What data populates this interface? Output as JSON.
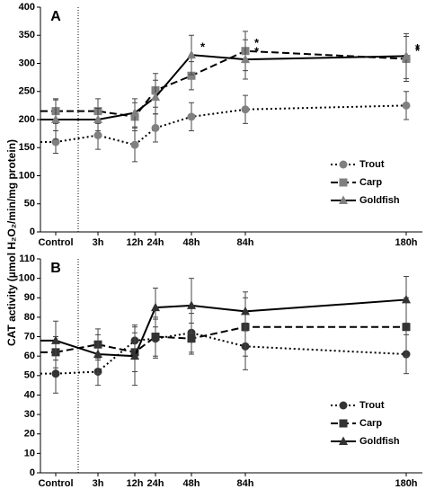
{
  "y_label": "CAT activity (µmol H₂O₂/min/mg protein)",
  "chart_data": [
    {
      "type": "line",
      "title": "A",
      "categories": [
        "Control",
        "3h",
        "12h",
        "24h",
        "48h",
        "84h",
        "180h"
      ],
      "ylim": [
        0,
        400
      ],
      "yticks": [
        0,
        50,
        100,
        150,
        200,
        250,
        300,
        350,
        400
      ],
      "legend": "lower right",
      "series": [
        {
          "name": "Trout",
          "color": "#000000",
          "marker_color": "#808080",
          "style": "dotted",
          "marker": "circle",
          "values": [
            160,
            172,
            155,
            185,
            205,
            218,
            225
          ],
          "errors": [
            20,
            25,
            30,
            25,
            25,
            25,
            25
          ]
        },
        {
          "name": "Carp",
          "color": "#000000",
          "marker_color": "#808080",
          "style": "dashed",
          "marker": "square",
          "values": [
            215,
            215,
            205,
            252,
            278,
            322,
            308
          ],
          "errors": [
            22,
            22,
            25,
            30,
            25,
            35,
            40
          ]
        },
        {
          "name": "Goldfish",
          "color": "#000000",
          "marker_color": "#808080",
          "style": "solid",
          "marker": "triangle",
          "values": [
            200,
            200,
            212,
            240,
            315,
            307,
            313
          ],
          "errors": [
            35,
            20,
            25,
            30,
            35,
            35,
            40
          ]
        }
      ],
      "annotations": [
        {
          "text": "*",
          "category": "48h",
          "series": "Goldfish"
        },
        {
          "text": "*",
          "category": "84h",
          "series": "Carp"
        },
        {
          "text": "*",
          "category": "84h",
          "series": "Goldfish"
        },
        {
          "text": "*",
          "category": "180h",
          "series": "Carp"
        },
        {
          "text": "*",
          "category": "180h",
          "series": "Goldfish"
        }
      ]
    },
    {
      "type": "line",
      "title": "B",
      "categories": [
        "Control",
        "3h",
        "12h",
        "24h",
        "48h",
        "84h",
        "180h"
      ],
      "ylim": [
        0,
        110
      ],
      "yticks": [
        0,
        10,
        20,
        30,
        40,
        50,
        60,
        70,
        80,
        90,
        100,
        110
      ],
      "legend": "lower right",
      "series": [
        {
          "name": "Trout",
          "color": "#000000",
          "marker_color": "#333333",
          "style": "dotted",
          "marker": "circle",
          "values": [
            51,
            52,
            68,
            69,
            72,
            65,
            61
          ],
          "errors": [
            10,
            7,
            8,
            10,
            10,
            12,
            10
          ]
        },
        {
          "name": "Carp",
          "color": "#000000",
          "marker_color": "#333333",
          "style": "dashed",
          "marker": "square",
          "values": [
            62,
            66,
            62,
            70,
            69,
            75,
            75
          ],
          "errors": [
            8,
            8,
            10,
            10,
            8,
            15,
            15
          ]
        },
        {
          "name": "Goldfish",
          "color": "#000000",
          "marker_color": "#333333",
          "style": "solid",
          "marker": "triangle",
          "values": [
            68,
            61,
            60,
            85,
            86,
            83,
            89
          ],
          "errors": [
            10,
            10,
            15,
            10,
            14,
            10,
            12
          ]
        }
      ]
    }
  ]
}
